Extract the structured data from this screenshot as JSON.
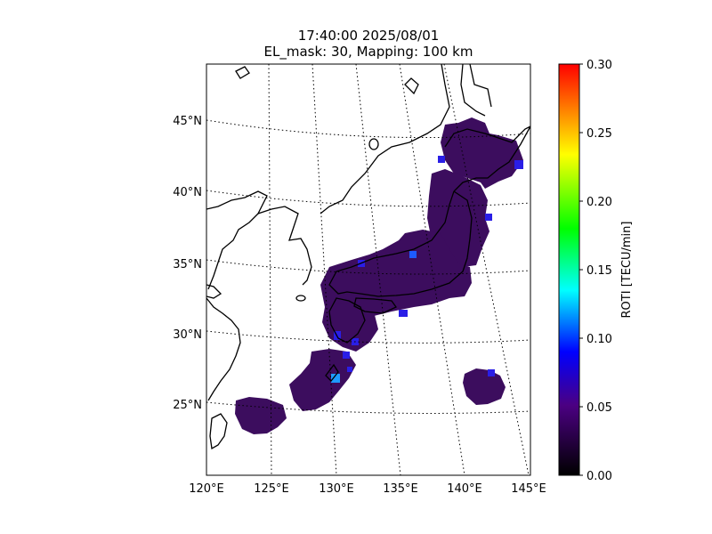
{
  "title": {
    "line1": "17:40:00 2025/08/01",
    "line2": "EL_mask: 30, Mapping: 100 km"
  },
  "map": {
    "lon_range": [
      120,
      145
    ],
    "lat_range": [
      20,
      49
    ],
    "lon_ticks": [
      "120°E",
      "125°E",
      "130°E",
      "135°E",
      "140°E",
      "145°E"
    ],
    "lat_ticks": [
      "25°N",
      "30°N",
      "35°N",
      "40°N",
      "45°N"
    ],
    "gridlines": "dotted"
  },
  "colorbar": {
    "label": "ROTI [TECU/min]",
    "ticks": [
      "0.00",
      "0.05",
      "0.10",
      "0.15",
      "0.20",
      "0.25",
      "0.30"
    ],
    "range": [
      0,
      0.3
    ],
    "colormap": [
      "#000000",
      "#4b0082",
      "#0000ff",
      "#00ffff",
      "#00ff00",
      "#ffff00",
      "#ff0000"
    ]
  },
  "colors": {
    "roti_background": "#3c0d5e",
    "roti_enhanced": "#2a1ee6"
  }
}
